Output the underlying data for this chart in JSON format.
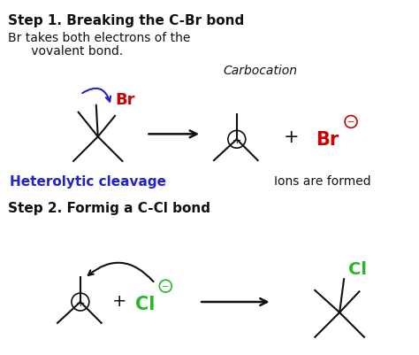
{
  "background_color": "#ffffff",
  "step1_title": "Step 1. Breaking the C-Br bond",
  "step1_text1": "Br takes both electrons of the",
  "step1_text2": "      vovalent bond.",
  "carbocation_label": "Carbocation",
  "heterolytic_label": "Heterolytic cleavage",
  "ions_label": "Ions are formed",
  "step2_title": "Step 2. Formig a C-Cl bond",
  "blue_color": "#2222cc",
  "red_color": "#cc0000",
  "green_color": "#22bb22",
  "black_color": "#111111"
}
